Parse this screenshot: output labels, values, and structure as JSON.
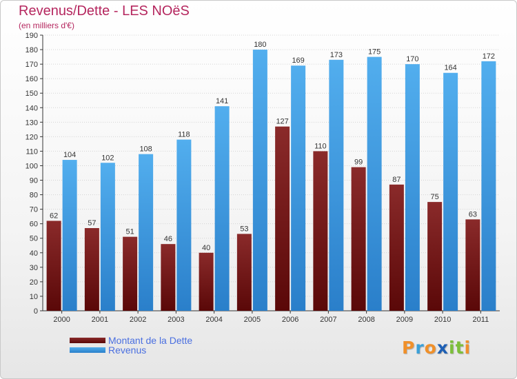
{
  "chart_data": {
    "type": "bar",
    "title": "Revenus/Dette - LES NOëS",
    "subtitle": "(en milliers d'€)",
    "categories": [
      "2000",
      "2001",
      "2002",
      "2003",
      "2004",
      "2005",
      "2006",
      "2007",
      "2008",
      "2009",
      "2010",
      "2011"
    ],
    "series": [
      {
        "name": "Montant de la Dette",
        "color": "#7a1a1a",
        "values": [
          62,
          57,
          51,
          46,
          40,
          53,
          127,
          110,
          99,
          87,
          75,
          63
        ]
      },
      {
        "name": "Revenus",
        "color": "#3f9be6",
        "values": [
          104,
          102,
          108,
          118,
          141,
          180,
          169,
          173,
          175,
          170,
          164,
          172
        ]
      }
    ],
    "ylim": [
      0,
      190
    ],
    "ytick_step": 10,
    "grid": true,
    "legend_position": "bottom-left"
  },
  "branding": {
    "logo_letters": [
      {
        "char": "P",
        "color": "#f0902a"
      },
      {
        "char": "r",
        "color": "#3aa0d8"
      },
      {
        "char": "o",
        "color": "#f0902a"
      },
      {
        "char": "x",
        "color": "#1d5fb4"
      },
      {
        "char": "i",
        "color": "#7cbf3a"
      },
      {
        "char": "t",
        "color": "#7cbf3a"
      },
      {
        "char": "i",
        "color": "#f0902a"
      }
    ]
  }
}
